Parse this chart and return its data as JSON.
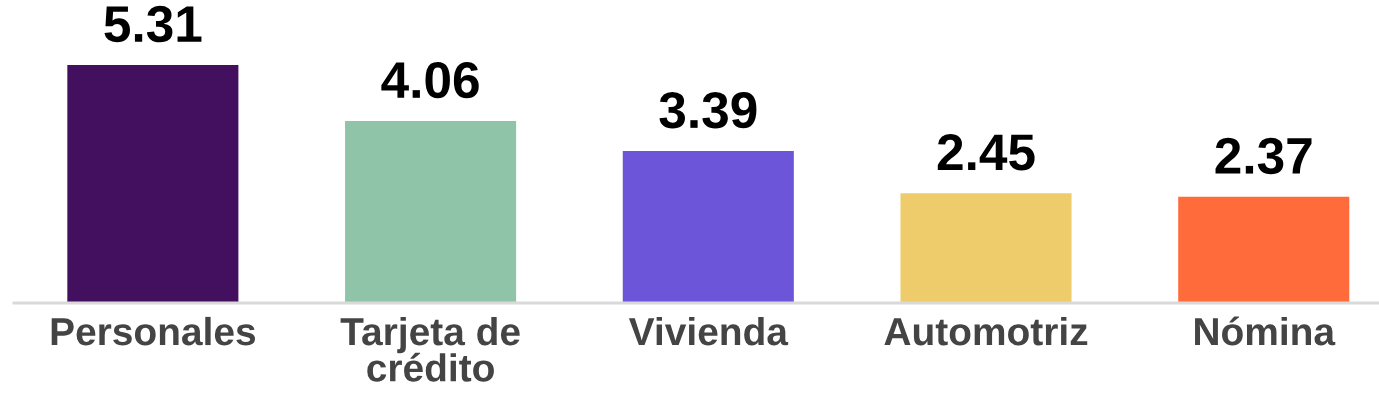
{
  "chart_data": {
    "type": "bar",
    "categories": [
      "Personales",
      "Tarjeta de\ncrédito",
      "Vivienda",
      "Automotriz",
      "Nómina"
    ],
    "values": [
      5.31,
      4.06,
      3.39,
      2.45,
      2.37
    ],
    "colors": [
      "#42105e",
      "#8fc4a8",
      "#6c55d9",
      "#eecb6b",
      "#ff6b3a"
    ],
    "data_labels": true,
    "grid": false,
    "legend": false,
    "tick_labels": "x"
  }
}
